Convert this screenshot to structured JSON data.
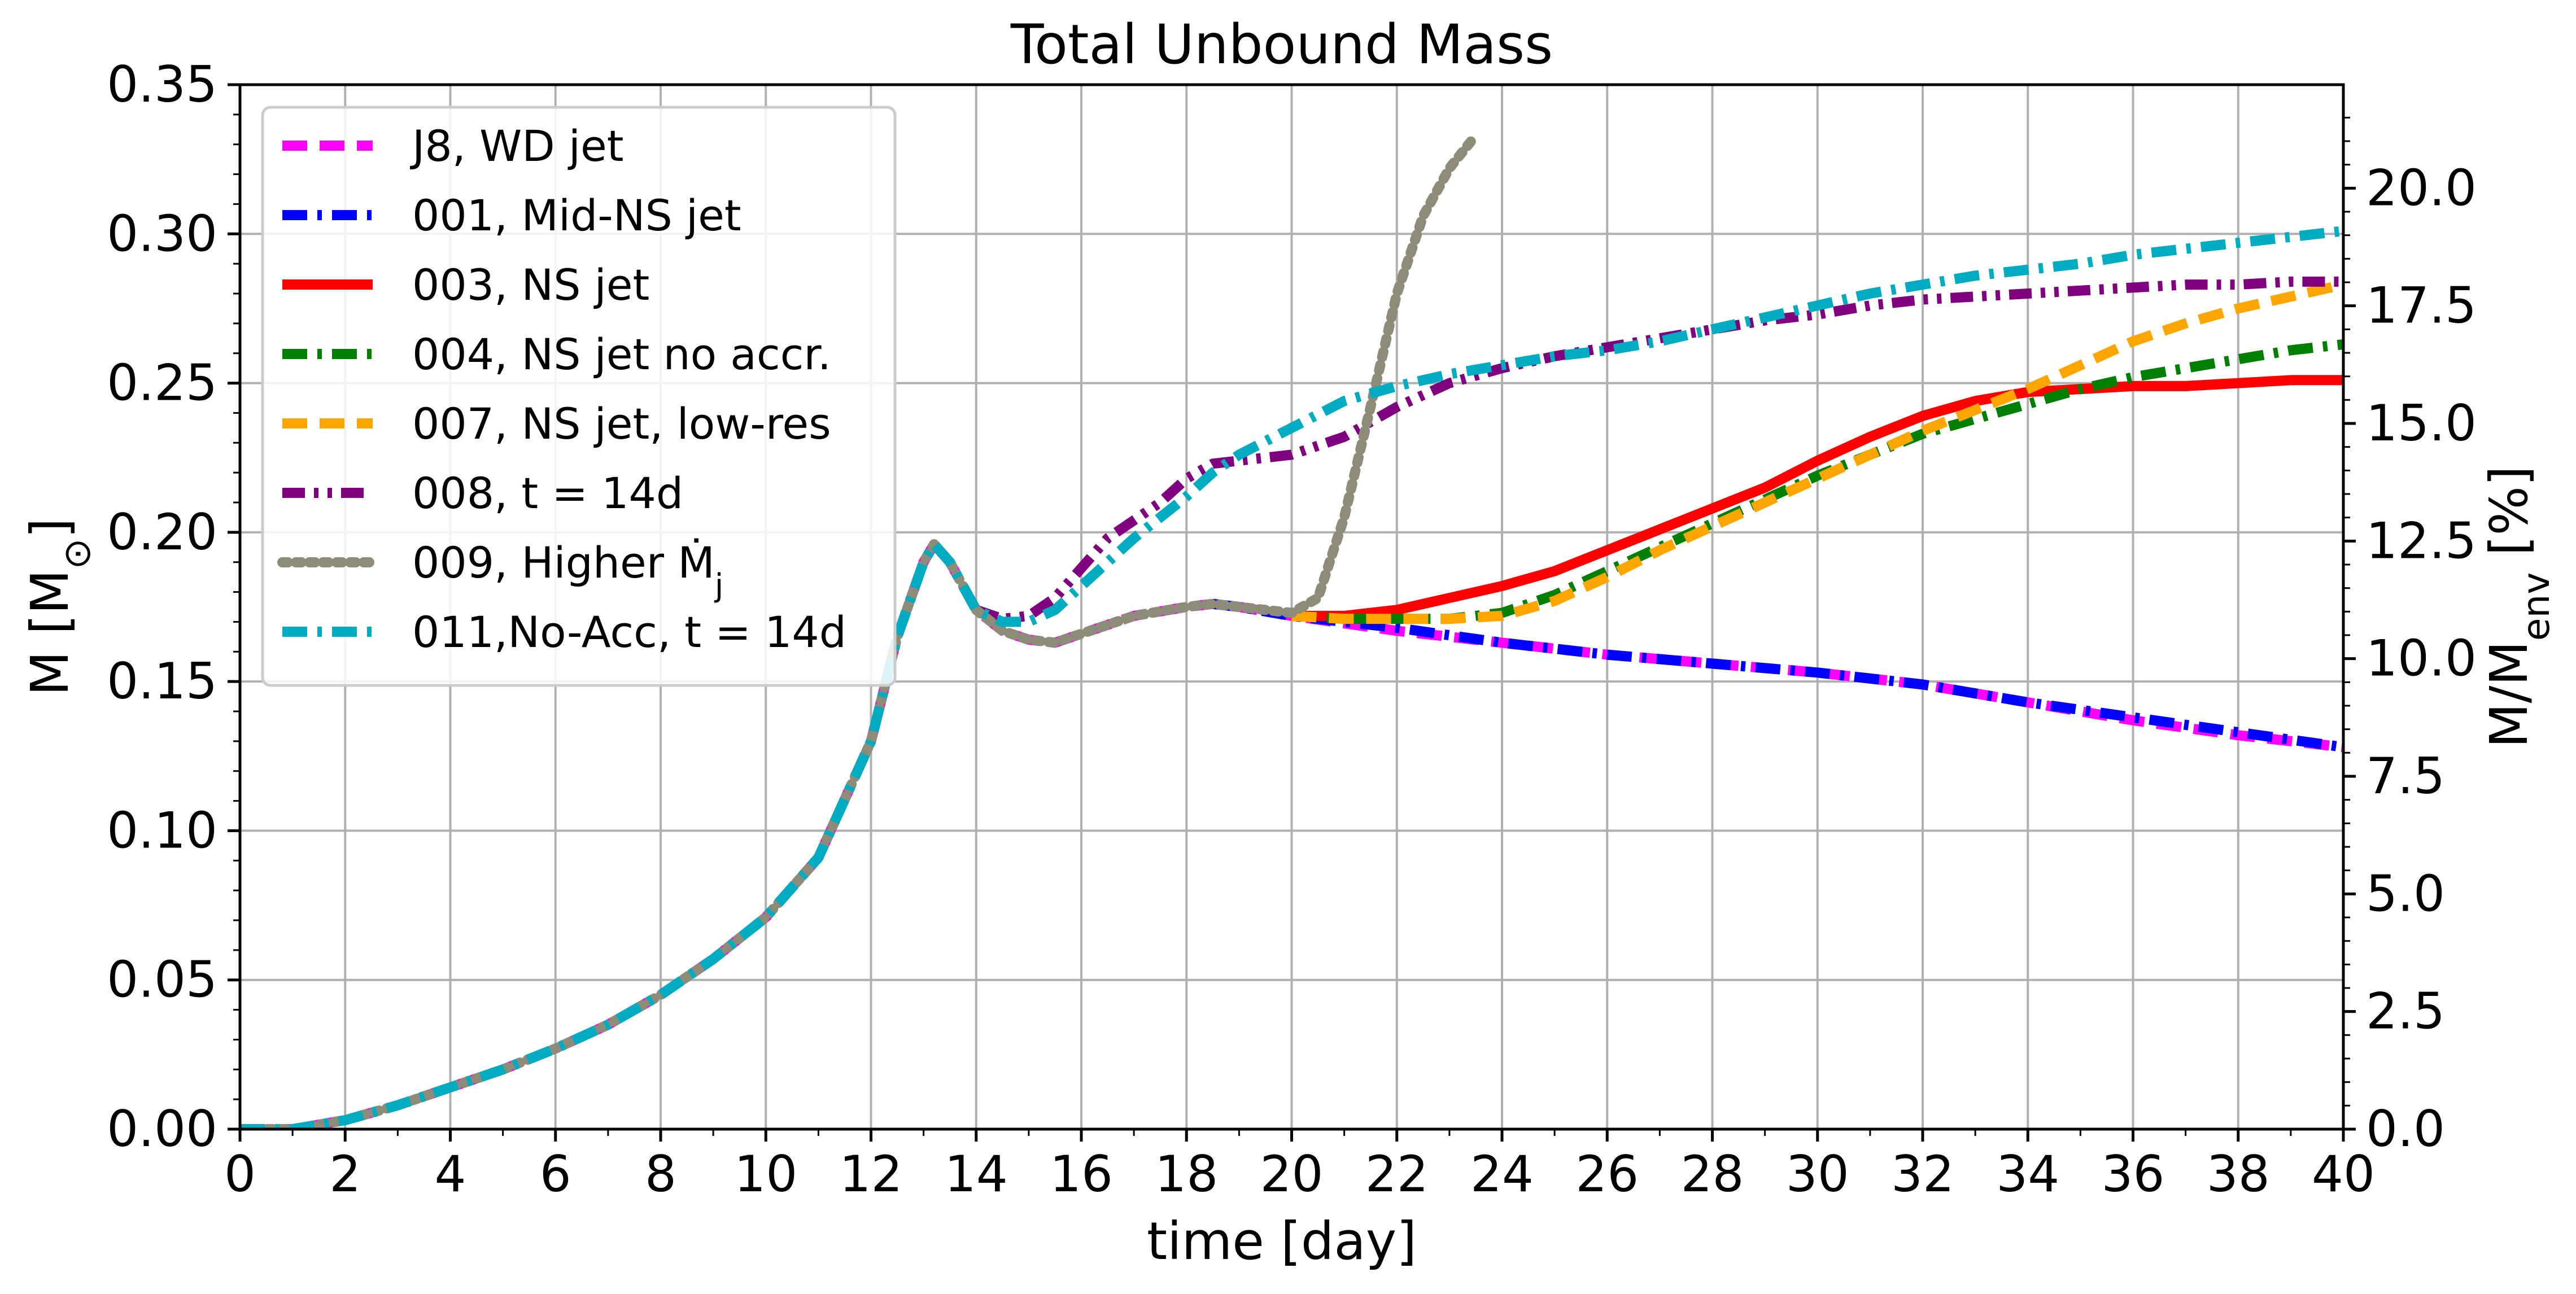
{
  "chart_data": {
    "type": "line",
    "title": "Total Unbound Mass",
    "xlabel": "time [day]",
    "ylabel": "M [M",
    "ylabel_sub": "⊙",
    "ylabel_close": "]",
    "y2label_prefix": "M/M",
    "y2label_sub": "env",
    "y2label_suffix": " [%]",
    "xlim": [
      0,
      40
    ],
    "ylim": [
      0,
      0.35
    ],
    "y2lim": [
      0,
      22.2
    ],
    "xticks": [
      "0",
      "2",
      "4",
      "6",
      "8",
      "10",
      "12",
      "14",
      "16",
      "18",
      "20",
      "22",
      "24",
      "26",
      "28",
      "30",
      "32",
      "34",
      "36",
      "38",
      "40"
    ],
    "yticks": [
      "0.00",
      "0.05",
      "0.10",
      "0.15",
      "0.20",
      "0.25",
      "0.30",
      "0.35"
    ],
    "y2ticks": [
      "0.0",
      "2.5",
      "5.0",
      "7.5",
      "10.0",
      "12.5",
      "15.0",
      "17.5",
      "20.0"
    ],
    "grid": true,
    "legend_position": "upper-left",
    "series": [
      {
        "name": "J8, WD jet",
        "color": "#ff00ff",
        "dash": "dashed",
        "x": [
          0,
          1,
          2,
          3,
          4,
          5,
          6,
          7,
          8,
          9,
          10,
          11,
          12,
          12.5,
          13,
          13.2,
          13.5,
          14,
          14.5,
          15,
          15.5,
          16,
          17,
          18,
          18.5,
          19,
          20,
          22,
          24,
          26,
          28,
          30,
          32,
          34,
          36,
          38,
          40
        ],
        "y": [
          0,
          0,
          0.003,
          0.008,
          0.014,
          0.02,
          0.027,
          0.035,
          0.045,
          0.057,
          0.071,
          0.091,
          0.13,
          0.165,
          0.19,
          0.196,
          0.19,
          0.174,
          0.167,
          0.164,
          0.163,
          0.166,
          0.172,
          0.175,
          0.176,
          0.175,
          0.172,
          0.167,
          0.163,
          0.159,
          0.156,
          0.153,
          0.149,
          0.143,
          0.137,
          0.132,
          0.128
        ]
      },
      {
        "name": "001, Mid-NS jet",
        "color": "#0000ff",
        "dash": "dashdot",
        "x": [
          18.5,
          19,
          20,
          22,
          24,
          26,
          28,
          30,
          32,
          34,
          36,
          38,
          40
        ],
        "y": [
          0.176,
          0.175,
          0.172,
          0.168,
          0.163,
          0.159,
          0.156,
          0.153,
          0.149,
          0.143,
          0.138,
          0.133,
          0.128
        ]
      },
      {
        "name": "003, NS jet",
        "color": "#ff0000",
        "dash": "solid",
        "x": [
          20,
          21,
          22,
          23,
          24,
          25,
          26,
          27,
          28,
          29,
          30,
          31,
          32,
          33,
          34,
          35,
          36,
          37,
          38,
          39,
          40
        ],
        "y": [
          0.172,
          0.172,
          0.174,
          0.178,
          0.182,
          0.187,
          0.194,
          0.201,
          0.208,
          0.215,
          0.224,
          0.232,
          0.239,
          0.244,
          0.247,
          0.248,
          0.249,
          0.249,
          0.25,
          0.251,
          0.251
        ]
      },
      {
        "name": "004, NS jet no accr.",
        "color": "#008000",
        "dash": "dashdot",
        "x": [
          20,
          21,
          22,
          23,
          24,
          25,
          26,
          27,
          28,
          29,
          30,
          31,
          32,
          33,
          34,
          35,
          36,
          37,
          38,
          39,
          40
        ],
        "y": [
          0.172,
          0.171,
          0.171,
          0.171,
          0.173,
          0.179,
          0.187,
          0.195,
          0.203,
          0.211,
          0.219,
          0.226,
          0.233,
          0.238,
          0.243,
          0.248,
          0.252,
          0.255,
          0.258,
          0.261,
          0.263
        ]
      },
      {
        "name": "007, NS jet, low-res",
        "color": "#ffa500",
        "dash": "dashed",
        "x": [
          20,
          21,
          22,
          23,
          24,
          25,
          26,
          27,
          28,
          29,
          30,
          31,
          32,
          33,
          34,
          35,
          36,
          37,
          38,
          39,
          40
        ],
        "y": [
          0.172,
          0.171,
          0.171,
          0.171,
          0.172,
          0.177,
          0.185,
          0.194,
          0.202,
          0.21,
          0.218,
          0.226,
          0.234,
          0.241,
          0.248,
          0.256,
          0.264,
          0.27,
          0.275,
          0.279,
          0.283
        ]
      },
      {
        "name": "008, t = 14d",
        "color": "#800080",
        "dash": "dashdotdot",
        "x": [
          14,
          14.5,
          15,
          15.5,
          16,
          16.5,
          17,
          17.5,
          18,
          18.5,
          19,
          20,
          21,
          22,
          23,
          24,
          25,
          26,
          27,
          28,
          29,
          30,
          31,
          32,
          33,
          34,
          35,
          36,
          37,
          38,
          39,
          40
        ],
        "y": [
          0.174,
          0.171,
          0.172,
          0.178,
          0.188,
          0.198,
          0.204,
          0.21,
          0.218,
          0.223,
          0.224,
          0.226,
          0.232,
          0.242,
          0.25,
          0.255,
          0.259,
          0.262,
          0.265,
          0.268,
          0.271,
          0.273,
          0.276,
          0.278,
          0.279,
          0.28,
          0.281,
          0.282,
          0.283,
          0.283,
          0.284,
          0.284
        ]
      },
      {
        "name": "009, Higher Ṁ",
        "name_sub": "j",
        "color": "#8c8c78",
        "dash": "dotted",
        "x": [
          0,
          1,
          2,
          3,
          4,
          5,
          6,
          7,
          8,
          9,
          10,
          11,
          12,
          12.5,
          13,
          13.2,
          13.5,
          14,
          14.5,
          15,
          15.5,
          16,
          17,
          18,
          18.5,
          19,
          20,
          20.5,
          21,
          21.5,
          22,
          22.5,
          23,
          23.5
        ],
        "y": [
          0,
          0,
          0.003,
          0.008,
          0.014,
          0.02,
          0.027,
          0.035,
          0.045,
          0.057,
          0.071,
          0.091,
          0.13,
          0.165,
          0.19,
          0.196,
          0.19,
          0.174,
          0.167,
          0.164,
          0.163,
          0.166,
          0.172,
          0.175,
          0.176,
          0.175,
          0.173,
          0.178,
          0.205,
          0.242,
          0.28,
          0.306,
          0.322,
          0.333
        ]
      },
      {
        "name": "011,No-Acc, t = 14d",
        "color": "#00acc1",
        "dash": "dashdot",
        "x": [
          0,
          1,
          2,
          3,
          4,
          5,
          6,
          7,
          8,
          9,
          10,
          11,
          12,
          12.5,
          13,
          13.2,
          13.5,
          14,
          14.5,
          15,
          15.5,
          16,
          16.5,
          17,
          17.5,
          18,
          18.5,
          19,
          20,
          21,
          22,
          23,
          24,
          25,
          26,
          27,
          28,
          29,
          30,
          31,
          32,
          33,
          34,
          35,
          36,
          37,
          38,
          39,
          40
        ],
        "y": [
          0,
          0,
          0.003,
          0.008,
          0.014,
          0.02,
          0.027,
          0.035,
          0.045,
          0.057,
          0.071,
          0.091,
          0.13,
          0.165,
          0.19,
          0.196,
          0.19,
          0.174,
          0.17,
          0.17,
          0.174,
          0.182,
          0.19,
          0.198,
          0.205,
          0.212,
          0.22,
          0.226,
          0.235,
          0.244,
          0.249,
          0.253,
          0.256,
          0.259,
          0.261,
          0.264,
          0.268,
          0.272,
          0.276,
          0.28,
          0.283,
          0.286,
          0.288,
          0.29,
          0.293,
          0.295,
          0.297,
          0.299,
          0.301
        ]
      }
    ]
  }
}
